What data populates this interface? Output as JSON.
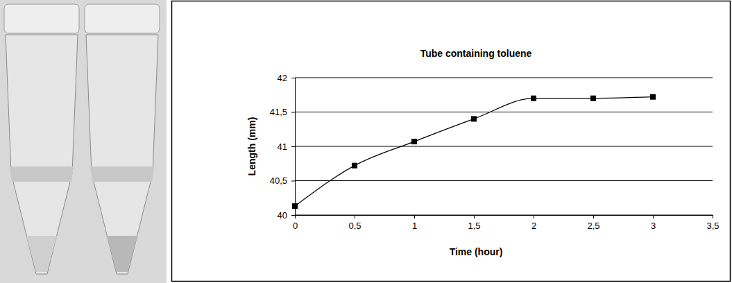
{
  "chart_data": {
    "type": "line",
    "title": "Tube containing toluene",
    "x_label": "Time (hour)",
    "y_label": "Length (mm)",
    "x": [
      0,
      0.5,
      1,
      1.5,
      2,
      2.5,
      3
    ],
    "values": [
      40.13,
      40.72,
      41.07,
      41.4,
      41.7,
      41.7,
      41.72
    ],
    "color": "#000000",
    "marker": "square",
    "line_style": "solid",
    "xlim": [
      0,
      3.5
    ],
    "xticks": [
      0,
      {
        "value": 0.5,
        "label": "0,5"
      },
      1,
      {
        "value": 1.5,
        "label": "1,5"
      },
      2,
      {
        "value": 2.5,
        "label": "2,5"
      },
      3,
      {
        "value": 3.5,
        "label": "3,5"
      }
    ],
    "ylim": [
      40,
      42
    ],
    "yticks": [
      40,
      {
        "value": 40.5,
        "label": "40,5"
      },
      41,
      {
        "value": 41.5,
        "label": "41,5"
      },
      42
    ],
    "grid": true
  }
}
